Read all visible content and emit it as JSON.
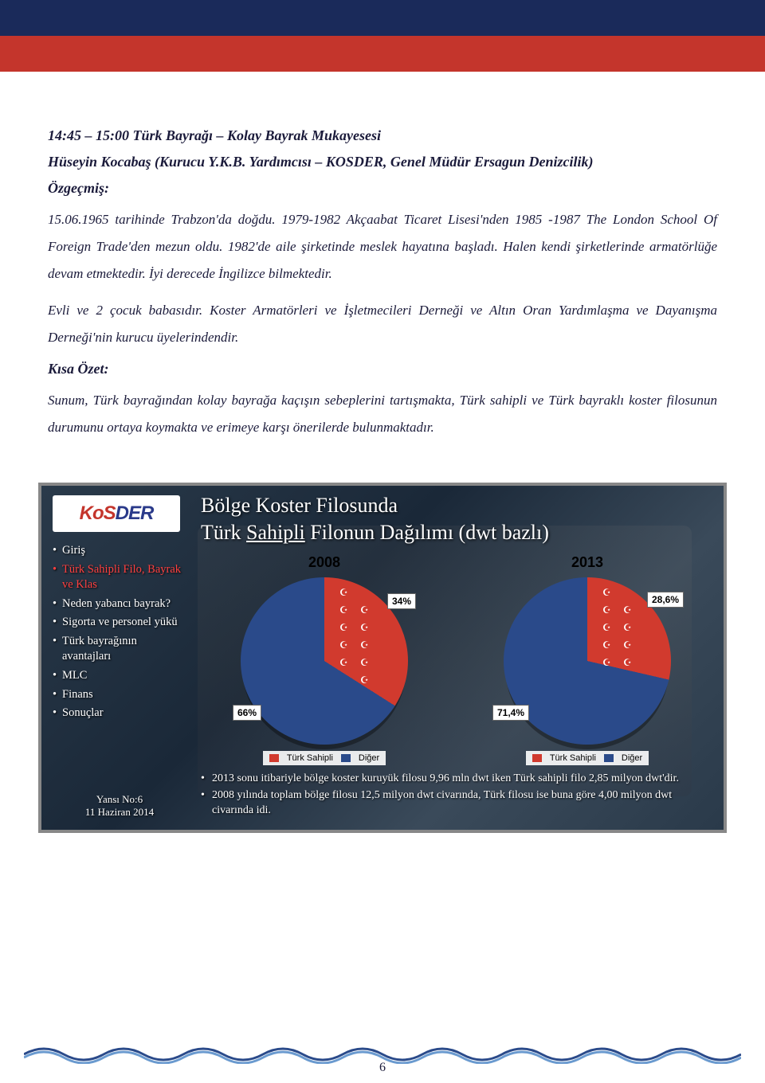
{
  "header": {
    "bar_top_color": "#1a2a5a",
    "bar_bottom_color": "#c4352c"
  },
  "session": {
    "time_title": "14:45 – 15:00 Türk Bayrağı – Kolay Bayrak Mukayesesi",
    "speaker": "Hüseyin Kocabaş (Kurucu Y.K.B. Yardımcısı – KOSDER, Genel Müdür Ersagun Denizcilik)",
    "ozgecmis_label": "Özgeçmiş:",
    "bio_p1": "15.06.1965 tarihinde Trabzon'da doğdu.   1979-1982 Akçaabat Ticaret Lisesi'nden 1985 -1987 The London School Of Foreign Trade'den mezun oldu. 1982'de  aile şirketinde meslek hayatına başladı. Halen kendi şirketlerinde armatörlüğe devam etmektedir. İyi derecede İngilizce bilmektedir.",
    "bio_p2": "Evli ve 2 çocuk babasıdır. Koster Armatörleri ve İşletmecileri Derneği ve Altın Oran Yardımlaşma ve Dayanışma Derneği'nin kurucu üyelerindendir.",
    "kisa_ozet_label": "Kısa Özet:",
    "summary": "Sunum, Türk bayrağından kolay bayrağa kaçışın sebeplerini tartışmakta, Türk sahipli ve Türk bayraklı koster filosunun durumunu ortaya koymakta ve erimeye karşı önerilerde bulunmaktadır."
  },
  "slide": {
    "logo_red": "KoS",
    "logo_blue": "DER",
    "nav": [
      {
        "label": "Giriş",
        "active": false
      },
      {
        "label": "Türk Sahipli Filo, Bayrak ve Klas",
        "active": true
      },
      {
        "label": "Neden yabancı bayrak?",
        "active": false
      },
      {
        "label": "Sigorta ve personel yükü",
        "active": false
      },
      {
        "label": "Türk bayrağının avantajları",
        "active": false
      },
      {
        "label": "MLC",
        "active": false
      },
      {
        "label": "Finans",
        "active": false
      },
      {
        "label": "Sonuçlar",
        "active": false
      }
    ],
    "slide_no_label": "Yansı No:6",
    "slide_date": "11 Haziran 2014",
    "title_line1": "Bölge Koster Filosunda",
    "title_line2_a": "Türk ",
    "title_line2_u": "Sahipli",
    "title_line2_b": " Filonun Dağılımı (dwt bazlı)",
    "chart_2008": {
      "type": "pie",
      "year": "2008",
      "slices": [
        {
          "label": "Türk Sahipli",
          "value": 34,
          "label_text": "34%",
          "color": "#d13a2e"
        },
        {
          "label": "Diğer",
          "value": 66,
          "label_text": "66%",
          "color": "#2a4a8a"
        }
      ],
      "flag_overlay": true
    },
    "chart_2013": {
      "type": "pie",
      "year": "2013",
      "slices": [
        {
          "label": "Türk Sahipli",
          "value": 28.6,
          "label_text": "28,6%",
          "color": "#d13a2e"
        },
        {
          "label": "Diğer",
          "value": 71.4,
          "label_text": "71,4%",
          "color": "#2a4a8a"
        }
      ],
      "flag_overlay": true
    },
    "legend": {
      "items": [
        {
          "label": "Türk Sahipli",
          "color": "#d13a2e"
        },
        {
          "label": "Diğer",
          "color": "#2a4a8a"
        }
      ]
    },
    "notes": [
      "2013 sonu itibariyle bölge koster kuruyük filosu 9,96 mln dwt iken Türk sahipli filo 2,85 milyon dwt'dir.",
      "2008 yılında toplam bölge filosu 12,5 milyon dwt civarında, Türk filosu ise buna göre 4,00 milyon dwt civarında idi."
    ]
  },
  "footer": {
    "page": "6",
    "wave_color1": "#2a4a8a",
    "wave_color2": "#6a9acf"
  }
}
